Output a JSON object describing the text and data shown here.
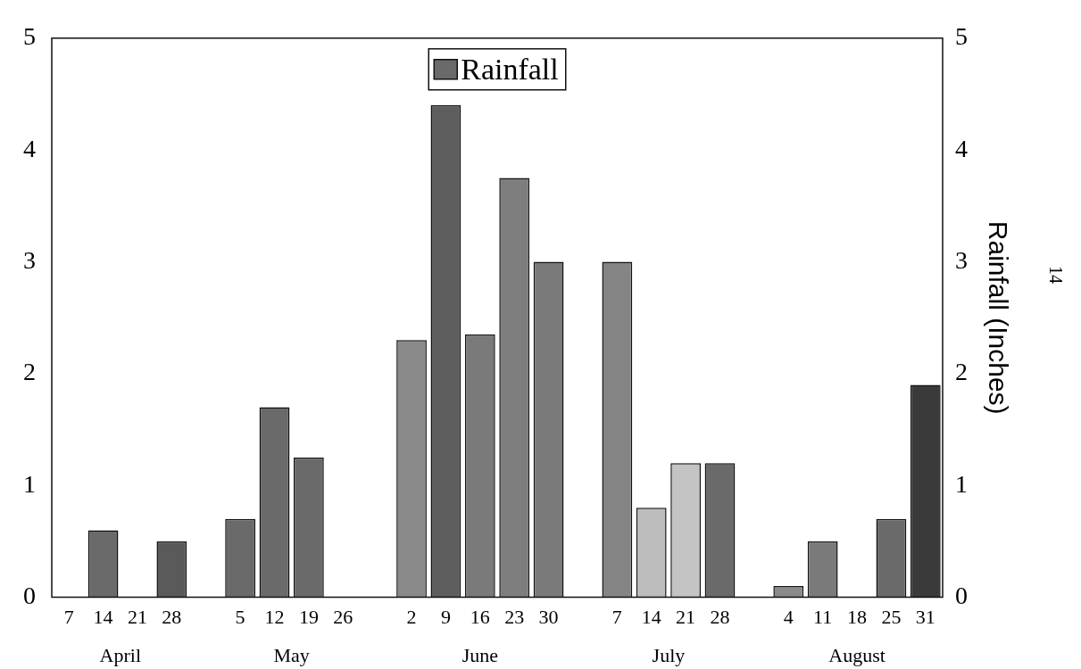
{
  "chart_data": {
    "type": "bar",
    "categories": [
      "7",
      "14",
      "21",
      "28",
      null,
      "5",
      "12",
      "19",
      "26",
      null,
      "2",
      "9",
      "16",
      "23",
      "30",
      null,
      "7",
      "14",
      "21",
      "28",
      null,
      "4",
      "11",
      "18",
      "25",
      "31"
    ],
    "series": [
      {
        "name": "Rainfall",
        "color": "#6a6a6a",
        "values": [
          0,
          0.6,
          0,
          0.5,
          null,
          0.7,
          1.7,
          1.25,
          0,
          null,
          2.3,
          4.4,
          2.35,
          3.75,
          3.0,
          null,
          3.0,
          0.8,
          1.2,
          1.2,
          null,
          0.1,
          0.5,
          0,
          0.7,
          1.9
        ],
        "colors": [
          "#6a6a6a",
          "#6a6a6a",
          "#6a6a6a",
          "#5a5a5a",
          "#6a6a6a",
          "#6a6a6a",
          "#6a6a6a",
          "#6a6a6a",
          "#6a6a6a",
          "#6a6a6a",
          "#8a8a8a",
          "#5e5e5e",
          "#7a7a7a",
          "#7e7e7e",
          "#7a7a7a",
          "#6a6a6a",
          "#858585",
          "#bdbdbd",
          "#c4c4c4",
          "#6a6a6a",
          "#6a6a6a",
          "#8a8a8a",
          "#7a7a7a",
          "#6a6a6a",
          "#6a6a6a",
          "#3a3a3a"
        ]
      }
    ],
    "ylim": [
      0,
      5
    ],
    "yticks": [
      0,
      1,
      2,
      3,
      4,
      5
    ],
    "y2lim": [
      0,
      5
    ],
    "y2ticks": [
      0,
      1,
      2,
      3,
      4,
      5
    ],
    "y2label": "Rainfall (Inches)",
    "legend": "top",
    "grid": false,
    "annotations": [
      "April",
      "May",
      "June",
      "July",
      "August",
      "14"
    ]
  }
}
